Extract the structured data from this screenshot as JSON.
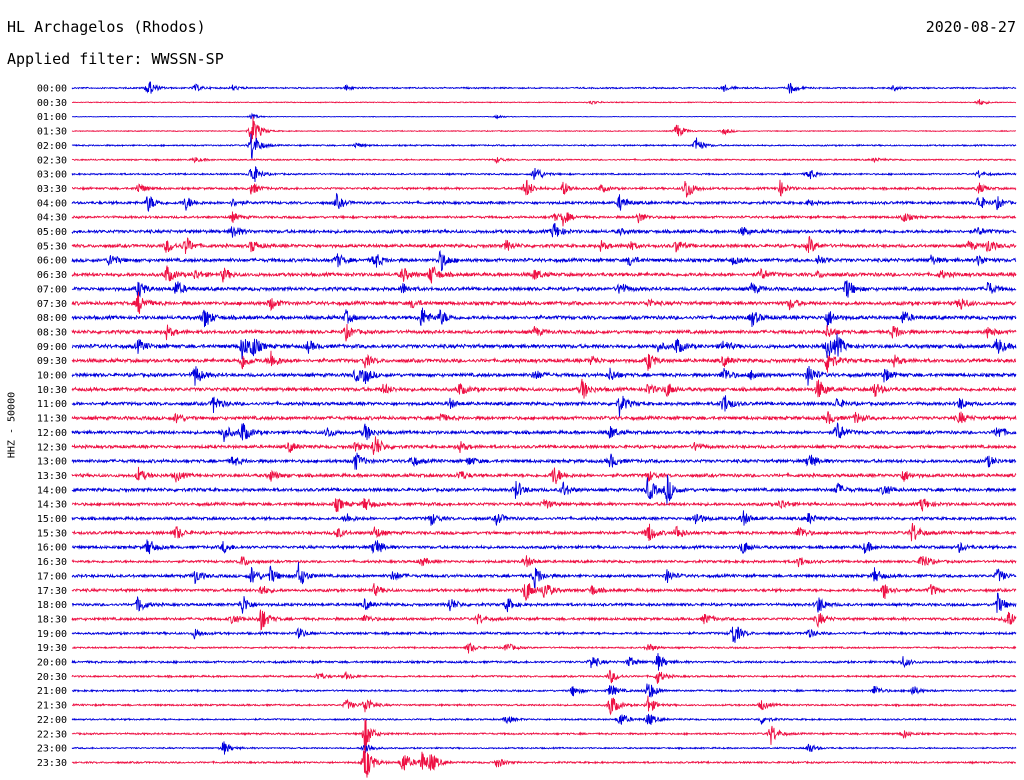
{
  "header": {
    "station": "HL Archagelos (Rhodos)",
    "date": "2020-08-27",
    "filter_text": "Applied filter: WWSSN-SP"
  },
  "chart_data": {
    "type": "line",
    "title": "HL Archagelos (Rhodos)",
    "subtitle": "Applied filter: WWSSN-SP",
    "date": "2020-08-27",
    "ylabel": "HHZ - 50000",
    "trace_interval_minutes": 30,
    "trace_start_labels": [
      "00:00",
      "00:30",
      "01:00",
      "01:30",
      "02:00",
      "02:30",
      "03:00",
      "03:30",
      "04:00",
      "04:30",
      "05:00",
      "05:30",
      "06:00",
      "06:30",
      "07:00",
      "07:30",
      "08:00",
      "08:30",
      "09:00",
      "09:30",
      "10:00",
      "10:30",
      "11:00",
      "11:30",
      "12:00",
      "12:30",
      "13:00",
      "13:30",
      "14:00",
      "14:30",
      "15:00",
      "15:30",
      "16:00",
      "16:30",
      "17:00",
      "17:30",
      "18:00",
      "18:30",
      "19:00",
      "19:30",
      "20:00",
      "20:30",
      "21:00",
      "21:30",
      "22:00",
      "22:30",
      "23:00",
      "23:30"
    ],
    "colors": [
      "#0000dd",
      "#ee1144"
    ],
    "baseline_noise": [
      0.8,
      0.5,
      0.3,
      0.5,
      0.8,
      0.8,
      0.9,
      1.2,
      1.5,
      1.3,
      1.8,
      1.8,
      1.9,
      2.0,
      1.9,
      2.0,
      2.0,
      1.9,
      2.1,
      2.0,
      1.9,
      2.0,
      1.8,
      1.9,
      1.8,
      1.7,
      1.8,
      1.8,
      1.8,
      1.7,
      1.6,
      1.7,
      1.6,
      1.4,
      1.6,
      1.6,
      1.5,
      1.5,
      1.3,
      0.9,
      1.2,
      1.0,
      1.0,
      1.0,
      0.9,
      1.0,
      0.8,
      1.0
    ],
    "events": [
      [
        [
          0.08,
          10
        ],
        [
          0.13,
          4
        ],
        [
          0.17,
          3
        ],
        [
          0.29,
          3
        ],
        [
          0.69,
          4
        ],
        [
          0.76,
          7
        ],
        [
          0.87,
          3
        ]
      ],
      [
        [
          0.96,
          4
        ],
        [
          0.55,
          2
        ]
      ],
      [
        [
          0.19,
          3
        ],
        [
          0.45,
          2
        ]
      ],
      [
        [
          0.19,
          20
        ],
        [
          0.64,
          9
        ],
        [
          0.69,
          4
        ]
      ],
      [
        [
          0.19,
          18
        ],
        [
          0.66,
          10
        ],
        [
          0.3,
          3
        ]
      ],
      [
        [
          0.13,
          3
        ],
        [
          0.45,
          3
        ],
        [
          0.85,
          2
        ]
      ],
      [
        [
          0.19,
          14
        ],
        [
          0.49,
          10
        ],
        [
          0.78,
          7
        ],
        [
          0.96,
          4
        ]
      ],
      [
        [
          0.07,
          6
        ],
        [
          0.19,
          7
        ],
        [
          0.48,
          12
        ],
        [
          0.52,
          8
        ],
        [
          0.56,
          4
        ],
        [
          0.65,
          14
        ],
        [
          0.75,
          8
        ],
        [
          0.96,
          6
        ]
      ],
      [
        [
          0.08,
          10
        ],
        [
          0.12,
          8
        ],
        [
          0.17,
          4
        ],
        [
          0.28,
          8
        ],
        [
          0.58,
          9
        ],
        [
          0.78,
          3
        ],
        [
          0.96,
          9
        ],
        [
          0.98,
          6
        ]
      ],
      [
        [
          0.17,
          5
        ],
        [
          0.51,
          4
        ],
        [
          0.52,
          8
        ],
        [
          0.6,
          6
        ],
        [
          0.88,
          6
        ]
      ],
      [
        [
          0.17,
          8
        ],
        [
          0.51,
          10
        ],
        [
          0.58,
          3
        ],
        [
          0.71,
          5
        ],
        [
          0.96,
          4
        ]
      ],
      [
        [
          0.1,
          8
        ],
        [
          0.12,
          10
        ],
        [
          0.19,
          7
        ],
        [
          0.46,
          6
        ],
        [
          0.56,
          5
        ],
        [
          0.59,
          5
        ],
        [
          0.64,
          7
        ],
        [
          0.78,
          10
        ],
        [
          0.95,
          5
        ],
        [
          0.97,
          8
        ]
      ],
      [
        [
          0.04,
          8
        ],
        [
          0.28,
          8
        ],
        [
          0.32,
          10
        ],
        [
          0.39,
          12
        ],
        [
          0.59,
          6
        ],
        [
          0.7,
          4
        ],
        [
          0.79,
          6
        ],
        [
          0.91,
          5
        ],
        [
          0.96,
          6
        ]
      ],
      [
        [
          0.1,
          10
        ],
        [
          0.13,
          5
        ],
        [
          0.16,
          7
        ],
        [
          0.35,
          8
        ],
        [
          0.38,
          12
        ],
        [
          0.49,
          6
        ],
        [
          0.73,
          6
        ],
        [
          0.79,
          3
        ],
        [
          0.92,
          4
        ]
      ],
      [
        [
          0.07,
          10
        ],
        [
          0.11,
          9
        ],
        [
          0.35,
          6
        ],
        [
          0.58,
          8
        ],
        [
          0.72,
          6
        ],
        [
          0.82,
          12
        ],
        [
          0.97,
          8
        ]
      ],
      [
        [
          0.07,
          12
        ],
        [
          0.21,
          7
        ],
        [
          0.36,
          5
        ],
        [
          0.61,
          4
        ],
        [
          0.76,
          6
        ],
        [
          0.94,
          8
        ]
      ],
      [
        [
          0.14,
          12
        ],
        [
          0.29,
          7
        ],
        [
          0.37,
          12
        ],
        [
          0.39,
          8
        ],
        [
          0.72,
          9
        ],
        [
          0.8,
          10
        ],
        [
          0.88,
          7
        ]
      ],
      [
        [
          0.1,
          7
        ],
        [
          0.29,
          8
        ],
        [
          0.49,
          5
        ],
        [
          0.8,
          7
        ],
        [
          0.87,
          8
        ],
        [
          0.97,
          6
        ]
      ],
      [
        [
          0.07,
          7
        ],
        [
          0.18,
          13
        ],
        [
          0.19,
          12
        ],
        [
          0.25,
          6
        ],
        [
          0.62,
          5
        ],
        [
          0.64,
          9
        ],
        [
          0.69,
          6
        ],
        [
          0.8,
          12
        ],
        [
          0.81,
          10
        ],
        [
          0.98,
          10
        ]
      ],
      [
        [
          0.18,
          9
        ],
        [
          0.21,
          11
        ],
        [
          0.31,
          7
        ],
        [
          0.55,
          5
        ],
        [
          0.61,
          10
        ],
        [
          0.69,
          6
        ],
        [
          0.8,
          15
        ],
        [
          0.87,
          6
        ]
      ],
      [
        [
          0.13,
          12
        ],
        [
          0.3,
          7
        ],
        [
          0.31,
          8
        ],
        [
          0.49,
          6
        ],
        [
          0.57,
          7
        ],
        [
          0.69,
          9
        ],
        [
          0.72,
          6
        ],
        [
          0.78,
          12
        ],
        [
          0.86,
          8
        ]
      ],
      [
        [
          0.33,
          6
        ],
        [
          0.41,
          7
        ],
        [
          0.54,
          12
        ],
        [
          0.61,
          6
        ],
        [
          0.63,
          8
        ],
        [
          0.79,
          12
        ],
        [
          0.85,
          8
        ]
      ],
      [
        [
          0.15,
          10
        ],
        [
          0.4,
          5
        ],
        [
          0.58,
          12
        ],
        [
          0.69,
          12
        ],
        [
          0.81,
          6
        ],
        [
          0.94,
          6
        ]
      ],
      [
        [
          0.11,
          6
        ],
        [
          0.39,
          5
        ],
        [
          0.8,
          7
        ],
        [
          0.83,
          6
        ],
        [
          0.94,
          7
        ]
      ],
      [
        [
          0.16,
          10
        ],
        [
          0.18,
          12
        ],
        [
          0.27,
          6
        ],
        [
          0.31,
          10
        ],
        [
          0.57,
          7
        ],
        [
          0.81,
          12
        ],
        [
          0.98,
          8
        ]
      ],
      [
        [
          0.23,
          6
        ],
        [
          0.3,
          5
        ],
        [
          0.32,
          14
        ],
        [
          0.41,
          6
        ],
        [
          0.66,
          5
        ]
      ],
      [
        [
          0.17,
          6
        ],
        [
          0.3,
          10
        ],
        [
          0.36,
          6
        ],
        [
          0.42,
          5
        ],
        [
          0.57,
          8
        ],
        [
          0.78,
          10
        ],
        [
          0.97,
          6
        ]
      ],
      [
        [
          0.07,
          8
        ],
        [
          0.11,
          6
        ],
        [
          0.21,
          6
        ],
        [
          0.41,
          6
        ],
        [
          0.51,
          12
        ],
        [
          0.61,
          6
        ],
        [
          0.88,
          7
        ]
      ],
      [
        [
          0.47,
          10
        ],
        [
          0.52,
          8
        ],
        [
          0.61,
          14
        ],
        [
          0.63,
          16
        ],
        [
          0.81,
          8
        ],
        [
          0.86,
          7
        ]
      ],
      [
        [
          0.28,
          8
        ],
        [
          0.31,
          8
        ],
        [
          0.5,
          6
        ],
        [
          0.75,
          6
        ],
        [
          0.9,
          8
        ]
      ],
      [
        [
          0.29,
          6
        ],
        [
          0.38,
          7
        ],
        [
          0.45,
          7
        ],
        [
          0.66,
          8
        ],
        [
          0.71,
          9
        ],
        [
          0.78,
          6
        ]
      ],
      [
        [
          0.11,
          8
        ],
        [
          0.28,
          6
        ],
        [
          0.32,
          7
        ],
        [
          0.61,
          12
        ],
        [
          0.64,
          8
        ],
        [
          0.77,
          8
        ],
        [
          0.89,
          12
        ]
      ],
      [
        [
          0.08,
          10
        ],
        [
          0.16,
          6
        ],
        [
          0.32,
          12
        ],
        [
          0.71,
          8
        ],
        [
          0.84,
          7
        ],
        [
          0.94,
          5
        ]
      ],
      [
        [
          0.18,
          6
        ],
        [
          0.37,
          5
        ],
        [
          0.48,
          7
        ],
        [
          0.77,
          6
        ],
        [
          0.9,
          10
        ]
      ],
      [
        [
          0.13,
          8
        ],
        [
          0.19,
          10
        ],
        [
          0.21,
          9
        ],
        [
          0.24,
          14
        ],
        [
          0.34,
          6
        ],
        [
          0.49,
          12
        ],
        [
          0.63,
          7
        ],
        [
          0.85,
          8
        ],
        [
          0.98,
          8
        ]
      ],
      [
        [
          0.2,
          6
        ],
        [
          0.32,
          6
        ],
        [
          0.48,
          14
        ],
        [
          0.5,
          10
        ],
        [
          0.55,
          6
        ],
        [
          0.86,
          10
        ],
        [
          0.91,
          6
        ]
      ],
      [
        [
          0.07,
          10
        ],
        [
          0.18,
          12
        ],
        [
          0.31,
          6
        ],
        [
          0.4,
          8
        ],
        [
          0.46,
          8
        ],
        [
          0.79,
          10
        ],
        [
          0.98,
          12
        ]
      ],
      [
        [
          0.17,
          6
        ],
        [
          0.2,
          14
        ],
        [
          0.31,
          5
        ],
        [
          0.43,
          6
        ],
        [
          0.67,
          6
        ],
        [
          0.79,
          8
        ],
        [
          0.99,
          12
        ]
      ],
      [
        [
          0.13,
          6
        ],
        [
          0.24,
          6
        ],
        [
          0.7,
          14
        ],
        [
          0.78,
          5
        ]
      ],
      [
        [
          0.42,
          6
        ],
        [
          0.46,
          6
        ],
        [
          0.61,
          5
        ]
      ],
      [
        [
          0.55,
          8
        ],
        [
          0.59,
          6
        ],
        [
          0.62,
          10
        ],
        [
          0.88,
          6
        ]
      ],
      [
        [
          0.26,
          5
        ],
        [
          0.29,
          4
        ],
        [
          0.57,
          8
        ],
        [
          0.62,
          8
        ]
      ],
      [
        [
          0.53,
          6
        ],
        [
          0.57,
          8
        ],
        [
          0.61,
          12
        ],
        [
          0.85,
          6
        ],
        [
          0.89,
          6
        ]
      ],
      [
        [
          0.29,
          6
        ],
        [
          0.31,
          10
        ],
        [
          0.57,
          14
        ],
        [
          0.61,
          10
        ],
        [
          0.73,
          6
        ]
      ],
      [
        [
          0.46,
          5
        ],
        [
          0.58,
          9
        ],
        [
          0.61,
          8
        ],
        [
          0.73,
          5
        ]
      ],
      [
        [
          0.31,
          18
        ],
        [
          0.74,
          12
        ],
        [
          0.88,
          5
        ]
      ],
      [
        [
          0.16,
          8
        ],
        [
          0.31,
          8
        ],
        [
          0.78,
          6
        ]
      ],
      [
        [
          0.31,
          24
        ],
        [
          0.35,
          14
        ],
        [
          0.37,
          12
        ],
        [
          0.38,
          10
        ],
        [
          0.45,
          6
        ]
      ]
    ]
  }
}
